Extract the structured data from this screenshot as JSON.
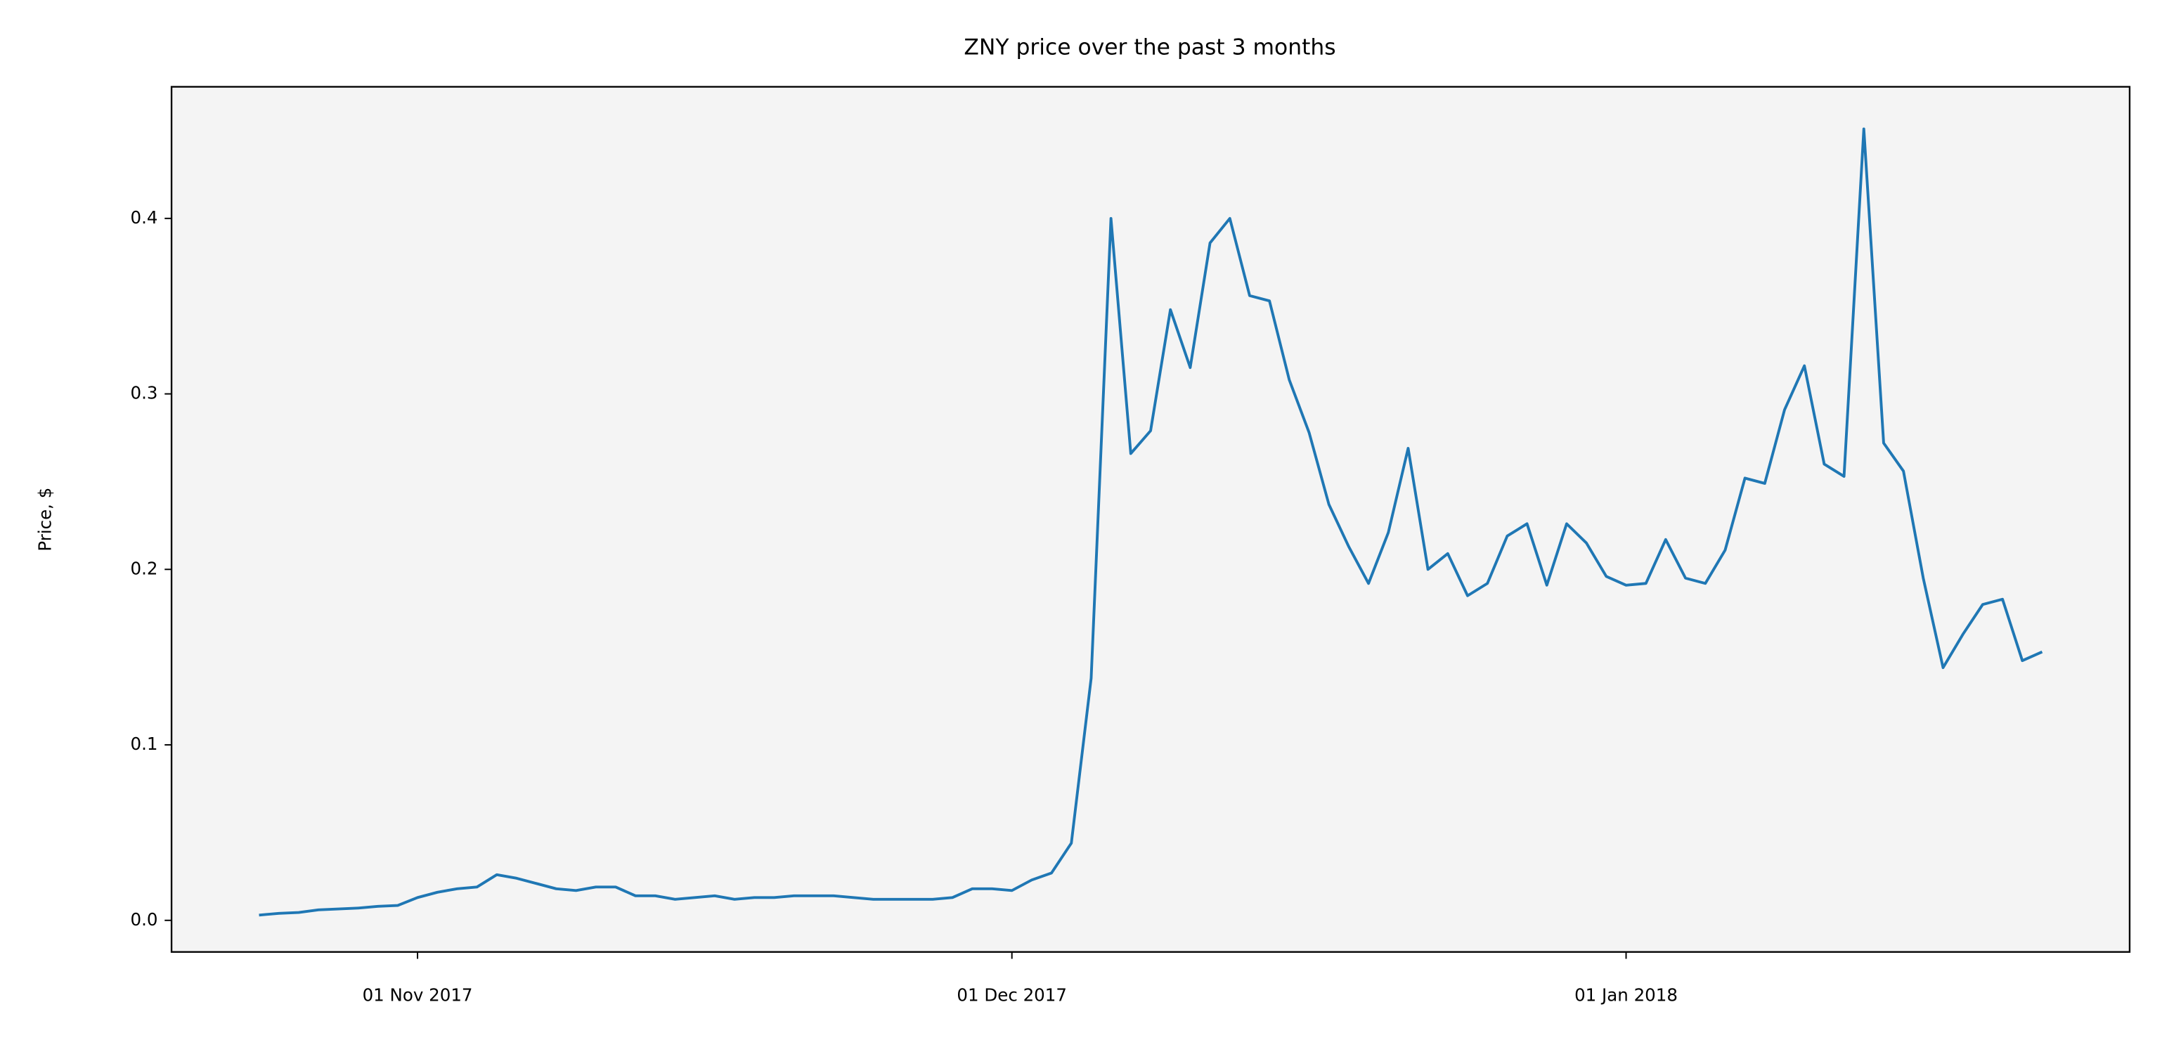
{
  "chart_data": {
    "type": "line",
    "title": "ZNY price over the past 3 months",
    "y_label": "Price, $",
    "x": [
      "2017-10-24",
      "2017-10-25",
      "2017-10-26",
      "2017-10-27",
      "2017-10-28",
      "2017-10-29",
      "2017-10-30",
      "2017-10-31",
      "2017-11-01",
      "2017-11-02",
      "2017-11-03",
      "2017-11-04",
      "2017-11-05",
      "2017-11-06",
      "2017-11-07",
      "2017-11-08",
      "2017-11-09",
      "2017-11-10",
      "2017-11-11",
      "2017-11-12",
      "2017-11-13",
      "2017-11-14",
      "2017-11-15",
      "2017-11-16",
      "2017-11-17",
      "2017-11-18",
      "2017-11-19",
      "2017-11-20",
      "2017-11-21",
      "2017-11-22",
      "2017-11-23",
      "2017-11-24",
      "2017-11-25",
      "2017-11-26",
      "2017-11-27",
      "2017-11-28",
      "2017-11-29",
      "2017-11-30",
      "2017-12-01",
      "2017-12-02",
      "2017-12-03",
      "2017-12-04",
      "2017-12-05",
      "2017-12-06",
      "2017-12-07",
      "2017-12-08",
      "2017-12-09",
      "2017-12-10",
      "2017-12-11",
      "2017-12-12",
      "2017-12-13",
      "2017-12-14",
      "2017-12-15",
      "2017-12-16",
      "2017-12-17",
      "2017-12-18",
      "2017-12-19",
      "2017-12-20",
      "2017-12-21",
      "2017-12-22",
      "2017-12-23",
      "2017-12-24",
      "2017-12-25",
      "2017-12-26",
      "2017-12-27",
      "2017-12-28",
      "2017-12-29",
      "2017-12-30",
      "2017-12-31",
      "2018-01-01",
      "2018-01-02",
      "2018-01-03",
      "2018-01-04",
      "2018-01-05",
      "2018-01-06",
      "2018-01-07",
      "2018-01-08",
      "2018-01-09",
      "2018-01-10",
      "2018-01-11",
      "2018-01-12",
      "2018-01-13",
      "2018-01-14",
      "2018-01-15",
      "2018-01-16",
      "2018-01-17",
      "2018-01-18",
      "2018-01-19",
      "2018-01-20",
      "2018-01-21",
      "2018-01-22"
    ],
    "values": [
      0.003,
      0.004,
      0.0045,
      0.006,
      0.0065,
      0.007,
      0.008,
      0.0085,
      0.013,
      0.016,
      0.018,
      0.019,
      0.026,
      0.024,
      0.021,
      0.018,
      0.017,
      0.019,
      0.019,
      0.014,
      0.014,
      0.012,
      0.013,
      0.014,
      0.012,
      0.013,
      0.013,
      0.014,
      0.014,
      0.014,
      0.013,
      0.012,
      0.012,
      0.012,
      0.012,
      0.013,
      0.018,
      0.018,
      0.017,
      0.023,
      0.027,
      0.044,
      0.138,
      0.4,
      0.266,
      0.279,
      0.348,
      0.315,
      0.386,
      0.4,
      0.356,
      0.353,
      0.308,
      0.278,
      0.237,
      0.213,
      0.192,
      0.221,
      0.269,
      0.2,
      0.209,
      0.185,
      0.192,
      0.219,
      0.226,
      0.191,
      0.226,
      0.215,
      0.196,
      0.191,
      0.192,
      0.217,
      0.195,
      0.192,
      0.211,
      0.252,
      0.249,
      0.291,
      0.316,
      0.26,
      0.253,
      0.451,
      0.272,
      0.256,
      0.195,
      0.144,
      0.163,
      0.18,
      0.183,
      0.148,
      0.153
    ],
    "color": "#1f77b4",
    "xlim": [
      "2017-10-19T14:00:00Z",
      "2018-01-26T10:00:00Z"
    ],
    "xticks": [
      {
        "value": "2017-11-01",
        "label": "01 Nov 2017"
      },
      {
        "value": "2017-12-01",
        "label": "01 Dec 2017"
      },
      {
        "value": "2018-01-01",
        "label": "01 Jan 2018"
      }
    ],
    "ylim": [
      -0.018,
      0.475
    ],
    "yticks": [
      {
        "value": 0,
        "label": "0.0"
      },
      0.1,
      0.2,
      0.3,
      0.4
    ],
    "background": "#f4f4f4"
  }
}
